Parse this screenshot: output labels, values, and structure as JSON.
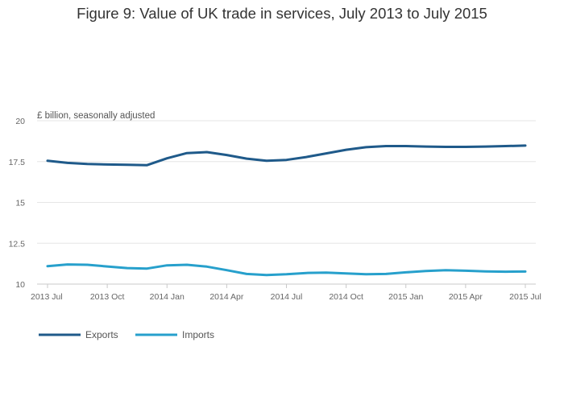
{
  "chart_data": {
    "type": "line",
    "title": "Figure 9: Value of UK trade in services, July 2013 to July 2015",
    "ylabel": "£ billion, seasonally adjusted",
    "xlabel": "",
    "ylim": [
      10,
      20
    ],
    "y_ticks": [
      "20",
      "17.5",
      "15",
      "12.5",
      "10"
    ],
    "y_tick_values": [
      20,
      17.5,
      15,
      12.5,
      10
    ],
    "x": [
      "2013 Jul",
      "2013 Aug",
      "2013 Sep",
      "2013 Oct",
      "2013 Nov",
      "2013 Dec",
      "2014 Jan",
      "2014 Feb",
      "2014 Mar",
      "2014 Apr",
      "2014 May",
      "2014 Jun",
      "2014 Jul",
      "2014 Aug",
      "2014 Sep",
      "2014 Oct",
      "2014 Nov",
      "2014 Dec",
      "2015 Jan",
      "2015 Feb",
      "2015 Mar",
      "2015 Apr",
      "2015 May",
      "2015 Jun",
      "2015 Jul"
    ],
    "x_tick_labels": [
      "2013 Jul",
      "2013 Oct",
      "2014 Jan",
      "2014 Apr",
      "2014 Jul",
      "2014 Oct",
      "2015 Jan",
      "2015 Apr",
      "2015 Jul"
    ],
    "x_tick_indices": [
      0,
      3,
      6,
      9,
      12,
      15,
      18,
      21,
      24
    ],
    "grid": true,
    "legend_position": "bottom-left",
    "series": [
      {
        "name": "Exports",
        "color": "#1f5a8a",
        "values": [
          17.55,
          17.42,
          17.35,
          17.32,
          17.3,
          17.28,
          17.7,
          18.02,
          18.08,
          17.9,
          17.68,
          17.55,
          17.6,
          17.78,
          18.0,
          18.22,
          18.38,
          18.45,
          18.45,
          18.42,
          18.4,
          18.4,
          18.42,
          18.45,
          18.48
        ]
      },
      {
        "name": "Imports",
        "color": "#27a0cc",
        "values": [
          11.1,
          11.2,
          11.18,
          11.08,
          10.98,
          10.95,
          11.15,
          11.18,
          11.07,
          10.85,
          10.62,
          10.55,
          10.6,
          10.68,
          10.7,
          10.65,
          10.6,
          10.62,
          10.72,
          10.8,
          10.85,
          10.82,
          10.78,
          10.76,
          10.77
        ]
      }
    ]
  }
}
